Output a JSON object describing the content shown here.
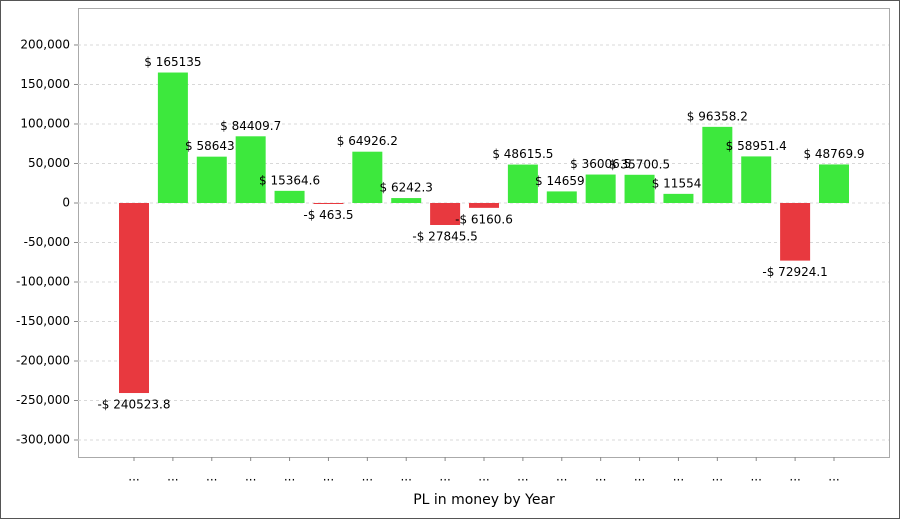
{
  "chart_data": {
    "type": "bar",
    "x_label": "PL in money by Year",
    "categories": [
      "...",
      "...",
      "...",
      "...",
      "...",
      "...",
      "...",
      "...",
      "...",
      "...",
      "...",
      "...",
      "...",
      "...",
      "...",
      "...",
      "...",
      "...",
      "..."
    ],
    "values": [
      -240523.8,
      165135,
      58643,
      84409.7,
      15364.6,
      -463.5,
      64926.2,
      6242.3,
      -27845.5,
      -6160.6,
      48615.5,
      14659,
      36006.5,
      35700.5,
      11554,
      96358.2,
      58951.4,
      -72924.1,
      48769.9
    ],
    "value_labels": [
      "-$ 240523.8",
      "$ 165135",
      "$ 58643.",
      "$ 84409.7",
      "$ 15364.6",
      "-$ 463.5",
      "$ 64926.2",
      "$ 6242.3",
      "-$ 27845.5",
      "-$ 6160.6",
      "$ 48615.5",
      "$ 14659.",
      "$ 36006.5",
      "$ 35700.5",
      "$ 11554.",
      "$ 96358.2",
      "$ 58951.4",
      "-$ 72924.1",
      "$ 48769.9"
    ],
    "positive_color": "#3de83d",
    "negative_color": "#e8393f",
    "ylim": [
      -321500,
      246800
    ],
    "yticks": [
      {
        "value": 200000,
        "label": "200,000"
      },
      {
        "value": 150000,
        "label": "150,000"
      },
      {
        "value": 100000,
        "label": "100,000"
      },
      {
        "value": 50000,
        "label": "50,000"
      },
      0,
      {
        "value": -50000,
        "label": "-50,000"
      },
      {
        "value": -100000,
        "label": "-100,000"
      },
      {
        "value": -150000,
        "label": "-150,000"
      },
      {
        "value": -200000,
        "label": "-200,000"
      },
      {
        "value": -250000,
        "label": "-250,000"
      },
      {
        "value": -300000,
        "label": "-300,000"
      }
    ],
    "grid": true
  }
}
